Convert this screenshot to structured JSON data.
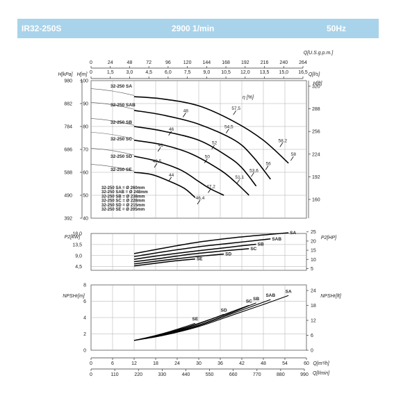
{
  "header": {
    "model": "IR32-250S",
    "speed": "2900 1/min",
    "frequency": "50Hz"
  },
  "chart_data": [
    {
      "id": "head",
      "type": "line",
      "x_axes_top": [
        {
          "label": "Q[U.S.g.p.m.]",
          "ticks": [
            "0",
            "24",
            "48",
            "72",
            "96",
            "120",
            "144",
            "168",
            "192",
            "216",
            "240",
            "264"
          ]
        },
        {
          "label": "Q[l/s]",
          "ticks": [
            "0",
            "1,5",
            "3,0",
            "4,5",
            "6,0",
            "7,5",
            "9,0",
            "10,5",
            "12,0",
            "13,5",
            "15,0",
            "16,5"
          ]
        }
      ],
      "x_axes_bottom": [
        {
          "label": "Q[m³/h]",
          "ticks": [
            "0",
            "6",
            "12",
            "18",
            "24",
            "30",
            "36",
            "42",
            "48",
            "54",
            "60"
          ]
        },
        {
          "label": "Q[l/min]",
          "ticks": [
            "0",
            "110",
            "220",
            "330",
            "440",
            "550",
            "660",
            "770",
            "880",
            "990"
          ]
        }
      ],
      "xlim": [
        0,
        60
      ],
      "ylabel": "H[m]",
      "ylim": [
        40,
        100
      ],
      "y_ticks": [
        40,
        50,
        60,
        70,
        80,
        90,
        100
      ],
      "ylabel_kpa": "H[kPa]",
      "y_ticks_kpa": [
        "392",
        "490",
        "588",
        "686",
        "784",
        "882",
        "980"
      ],
      "ylabel_ft": "H[ft]",
      "y_ticks_ft": [
        "160",
        "192",
        "224",
        "256",
        "288",
        "320"
      ],
      "series": [
        {
          "name": "32-250 SA",
          "x": [
            12,
            20,
            30,
            40,
            48,
            55
          ],
          "y": [
            93,
            92,
            89,
            82,
            74,
            64
          ]
        },
        {
          "name": "32-250 SAB",
          "x": [
            12,
            20,
            30,
            40,
            45,
            50
          ],
          "y": [
            87,
            85,
            81,
            74,
            67,
            57
          ]
        },
        {
          "name": "32-250 SB",
          "x": [
            12,
            20,
            30,
            38,
            42,
            46
          ],
          "y": [
            80,
            78,
            74,
            67,
            62,
            54
          ]
        },
        {
          "name": "32-250 SC",
          "x": [
            12,
            20,
            28,
            36,
            40,
            44
          ],
          "y": [
            74,
            72,
            68,
            61,
            56,
            50
          ]
        },
        {
          "name": "32-250 SD",
          "x": [
            12,
            18,
            25,
            30,
            33,
            37
          ],
          "y": [
            67,
            65,
            61,
            56,
            53,
            50
          ]
        },
        {
          "name": "32-250 SE",
          "x": [
            12,
            17,
            22,
            26,
            29
          ],
          "y": [
            60,
            59,
            56,
            53,
            49
          ]
        }
      ],
      "efficiency_label": "η [%]",
      "efficiency_marks": [
        {
          "text": "48",
          "x": 26,
          "y": 85
        },
        {
          "text": "57,5",
          "x": 40,
          "y": 86
        },
        {
          "text": "46",
          "x": 22,
          "y": 77
        },
        {
          "text": "54,5",
          "x": 38,
          "y": 78
        },
        {
          "text": "52",
          "x": 34,
          "y": 71
        },
        {
          "text": "58,2",
          "x": 53,
          "y": 72
        },
        {
          "text": "41",
          "x": 19,
          "y": 70
        },
        {
          "text": "50",
          "x": 32,
          "y": 65
        },
        {
          "text": "58",
          "x": 56,
          "y": 66
        },
        {
          "text": "40,5",
          "x": 18,
          "y": 63
        },
        {
          "text": "56",
          "x": 49,
          "y": 62
        },
        {
          "text": "53,6",
          "x": 45,
          "y": 59
        },
        {
          "text": "44",
          "x": 22,
          "y": 57
        },
        {
          "text": "51,1",
          "x": 41,
          "y": 56
        },
        {
          "text": "47,2",
          "x": 33,
          "y": 52
        },
        {
          "text": "46,4",
          "x": 30,
          "y": 47
        }
      ],
      "diameters": [
        "32-250 SA = Ø 260mm",
        "32-250 SAB = Ø 248mm",
        "32-250 SB = Ø 238mm",
        "32-250 SC = Ø 228mm",
        "32-250 SD = Ø 215mm",
        "32-250 SE = Ø 205mm"
      ]
    },
    {
      "id": "power",
      "type": "line",
      "ylabel": "P2[kW]",
      "ylim": [
        3,
        18
      ],
      "y_ticks": [
        "4,5",
        "9,0",
        "13,5",
        "18,0"
      ],
      "y_tick_values": [
        4.5,
        9,
        13.5,
        18
      ],
      "ylabel_hp": "P2[HP]",
      "y_ticks_hp": [
        "5",
        "10",
        "15",
        "20",
        "25"
      ],
      "series": [
        {
          "name": "SA",
          "x": [
            12,
            20,
            30,
            40,
            48,
            55
          ],
          "y": [
            9.8,
            12,
            14.5,
            16.3,
            17.4,
            18.3
          ]
        },
        {
          "name": "SAB",
          "x": [
            12,
            20,
            30,
            40,
            45,
            50
          ],
          "y": [
            8.6,
            10.5,
            12.6,
            14.2,
            15,
            15.8
          ]
        },
        {
          "name": "SB",
          "x": [
            12,
            20,
            30,
            38,
            42,
            46
          ],
          "y": [
            7.5,
            9.2,
            11,
            12.3,
            13,
            13.6
          ]
        },
        {
          "name": "SC",
          "x": [
            12,
            20,
            28,
            36,
            40,
            44
          ],
          "y": [
            6.5,
            8,
            9.6,
            10.8,
            11.3,
            11.8
          ]
        },
        {
          "name": "SD",
          "x": [
            12,
            18,
            25,
            30,
            33,
            37
          ],
          "y": [
            5.6,
            6.7,
            7.9,
            8.7,
            9.1,
            9.6
          ]
        },
        {
          "name": "SE",
          "x": [
            12,
            17,
            22,
            26,
            29
          ],
          "y": [
            4.8,
            5.7,
            6.6,
            7.2,
            7.6
          ]
        }
      ]
    },
    {
      "id": "npsh",
      "type": "line",
      "ylabel": "NPSHr[m]",
      "ylim": [
        0,
        8
      ],
      "y_ticks": [
        "0",
        "2",
        "4",
        "6",
        "8"
      ],
      "y_tick_values": [
        0,
        2,
        4,
        6,
        8
      ],
      "ylabel_ft": "NPSHr[ft]",
      "y_ticks_ft": [
        "0",
        "6",
        "12",
        "18",
        "24"
      ],
      "series": [
        {
          "name": "SA",
          "x": [
            12,
            20,
            30,
            40,
            48,
            55
          ],
          "y": [
            1.2,
            1.8,
            2.9,
            4.4,
            5.6,
            6.7
          ]
        },
        {
          "name": "SAB",
          "x": [
            12,
            20,
            30,
            40,
            45,
            50
          ],
          "y": [
            1.2,
            1.85,
            3.0,
            4.6,
            5.4,
            6.2
          ]
        },
        {
          "name": "SB",
          "x": [
            12,
            20,
            30,
            38,
            42,
            46
          ],
          "y": [
            1.2,
            1.9,
            3.1,
            4.4,
            5.1,
            5.8
          ]
        },
        {
          "name": "SC",
          "x": [
            12,
            20,
            28,
            36,
            40,
            44
          ],
          "y": [
            1.2,
            1.95,
            2.95,
            4.2,
            4.85,
            5.5
          ]
        },
        {
          "name": "SD",
          "x": [
            12,
            18,
            25,
            30,
            33,
            37
          ],
          "y": [
            1.2,
            1.75,
            2.6,
            3.3,
            3.75,
            4.4
          ]
        },
        {
          "name": "SE",
          "x": [
            12,
            17,
            22,
            26,
            29
          ],
          "y": [
            1.2,
            1.7,
            2.3,
            2.85,
            3.3
          ]
        }
      ]
    }
  ]
}
